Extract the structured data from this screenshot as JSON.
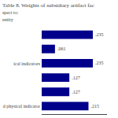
{
  "chart_data": {
    "type": "bar",
    "orientation": "horizontal",
    "title": "Table 8. Weights of subsidiary artifact fac",
    "subtitle": [
      "spect to:",
      "entity"
    ],
    "categories": [
      null,
      null,
      "ical indicators",
      null,
      null,
      "d physical indicator"
    ],
    "values": [
      0.235,
      0.061,
      0.235,
      0.127,
      0.127,
      0.215
    ],
    "value_labels": [
      ".235",
      ".061",
      ".235",
      ".127",
      ".127",
      ".215"
    ],
    "data_labels": true,
    "color": "#00008B",
    "xlim": [
      0,
      0.3
    ],
    "tick_labels": "y",
    "grid": false
  }
}
